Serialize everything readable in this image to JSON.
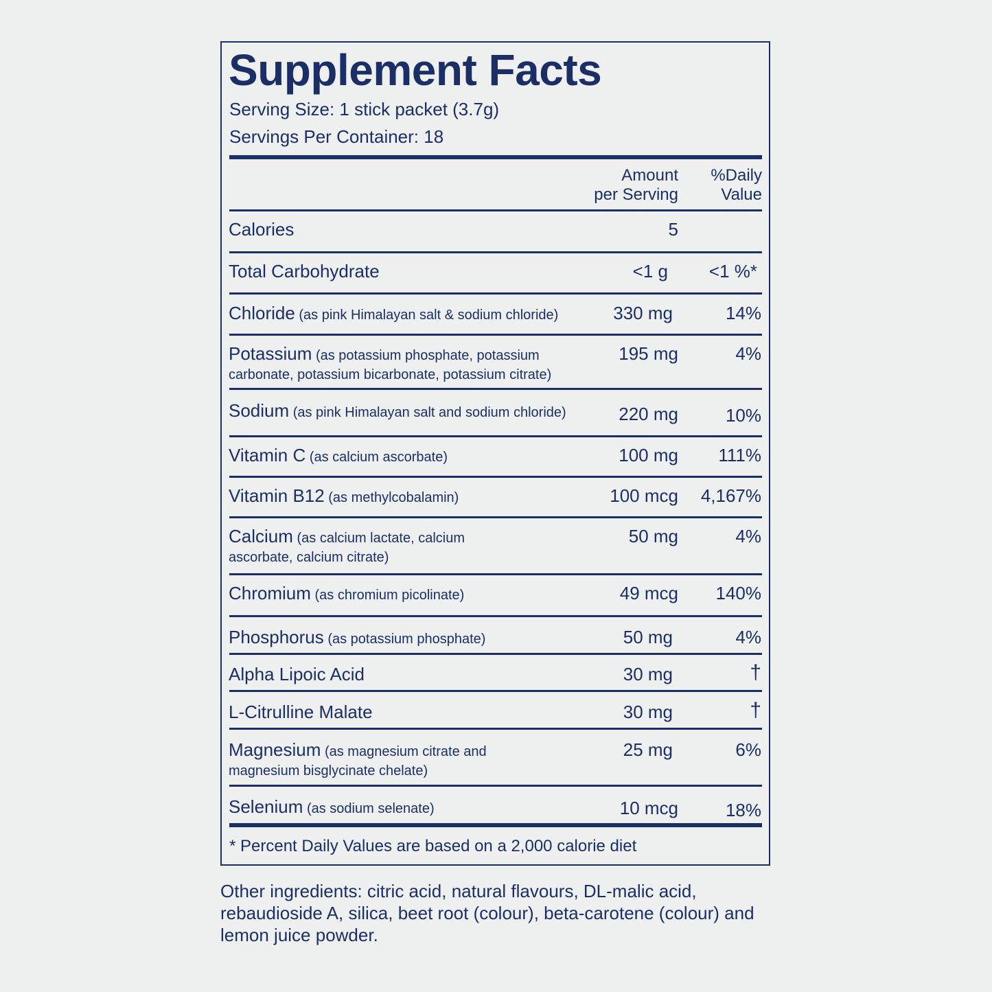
{
  "label": {
    "title": "Supplement Facts",
    "serving_size": "Serving Size: 1 stick packet (3.7g)",
    "servings_per_container": "Servings Per Container: 18",
    "col_amount": "Amount\nper Serving",
    "col_dv": "%Daily\nValue",
    "rows": [
      {
        "name": "Calories",
        "desc": "",
        "desc2": "",
        "amount": "5",
        "dv": ""
      },
      {
        "name": "Total Carbohydrate",
        "desc": "",
        "desc2": "",
        "amount": "<1 g",
        "dv": "<1 %*"
      },
      {
        "name": "Chloride",
        "desc": " (as pink Himalayan salt & sodium chloride)",
        "desc2": "",
        "amount": "330 mg",
        "dv": "14%"
      },
      {
        "name": "Potassium",
        "desc": " (as potassium phosphate, potassium",
        "desc2": "carbonate, potassium bicarbonate, potassium citrate)",
        "amount": "195 mg",
        "dv": "4%"
      },
      {
        "name": "Sodium",
        "desc": " (as pink Himalayan salt and sodium chloride)",
        "desc2": "",
        "amount": "220 mg",
        "dv": "10%"
      },
      {
        "name": "Vitamin C",
        "desc": " (as calcium ascorbate)",
        "desc2": "",
        "amount": "100 mg",
        "dv": "111%"
      },
      {
        "name": "Vitamin B12",
        "desc": " (as methylcobalamin)",
        "desc2": "",
        "amount": "100 mcg",
        "dv": "4,167%"
      },
      {
        "name": "Calcium",
        "desc": " (as calcium lactate, calcium",
        "desc2": "ascorbate, calcium citrate)",
        "amount": "50 mg",
        "dv": "4%"
      },
      {
        "name": "Chromium",
        "desc": " (as chromium picolinate)",
        "desc2": "",
        "amount": "49 mcg",
        "dv": "140%"
      },
      {
        "name": "Phosphorus",
        "desc": " (as potassium phosphate)",
        "desc2": "",
        "amount": "50 mg",
        "dv": "4%"
      },
      {
        "name": "Alpha Lipoic Acid",
        "desc": "",
        "desc2": "",
        "amount": "30 mg",
        "dv": "†"
      },
      {
        "name": "L-Citrulline Malate",
        "desc": "",
        "desc2": "",
        "amount": "30 mg",
        "dv": "†"
      },
      {
        "name": "Magnesium",
        "desc": " (as magnesium citrate and",
        "desc2": "magnesium bisglycinate chelate)",
        "amount": "25 mg",
        "dv": "6%"
      },
      {
        "name": "Selenium",
        "desc": " (as sodium selenate)",
        "desc2": "",
        "amount": "10 mcg",
        "dv": "18%"
      }
    ],
    "footnote": "* Percent Daily Values are based on a 2,000 calorie diet"
  },
  "other_ingredients": "Other ingredients: citric acid, natural flavours, DL-malic acid, rebaudioside A, silica, beet root (colour), beta-carotene (colour) and lemon juice powder.",
  "colors": {
    "text": "#1c2e66",
    "background": "#edf0ef"
  }
}
